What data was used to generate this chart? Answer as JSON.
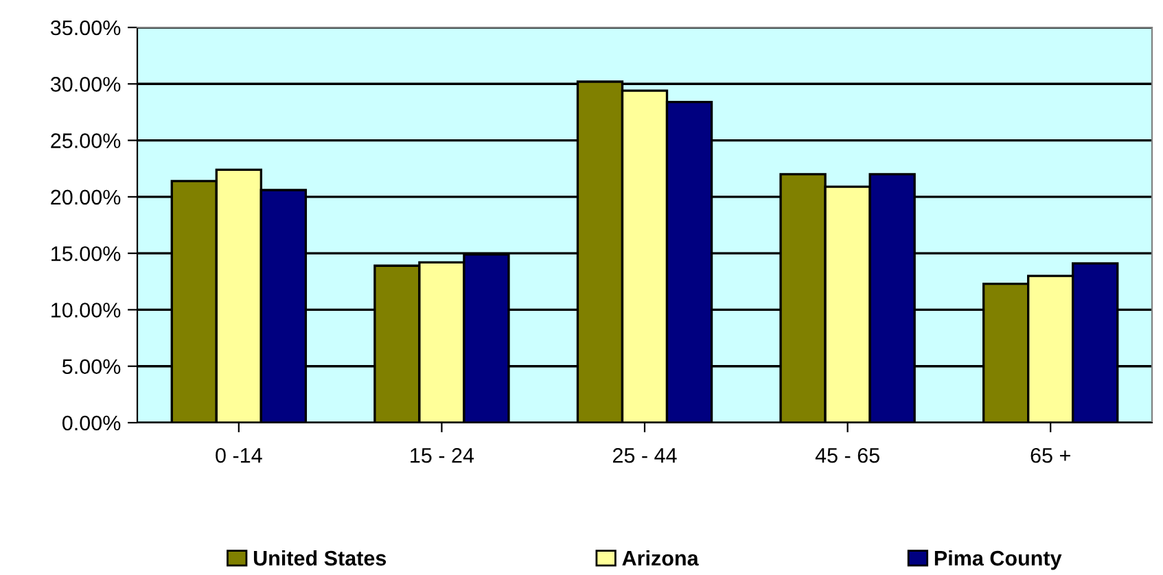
{
  "chart_data": {
    "type": "bar",
    "categories": [
      "0 -14",
      "15 - 24",
      "25 - 44",
      "45 - 65",
      "65 +"
    ],
    "series": [
      {
        "name": "United States",
        "color": "#808000",
        "values": [
          21.4,
          13.9,
          30.2,
          22.0,
          12.3
        ]
      },
      {
        "name": "Arizona",
        "color": "#ffff99",
        "values": [
          22.4,
          14.2,
          29.4,
          20.9,
          13.0
        ]
      },
      {
        "name": "Pima County",
        "color": "#000080",
        "values": [
          20.6,
          14.9,
          28.4,
          22.0,
          14.1
        ]
      }
    ],
    "ylim": [
      0,
      35
    ],
    "yticks": [
      {
        "value": 0,
        "label": "0.00%"
      },
      {
        "value": 5,
        "label": "5.00%"
      },
      {
        "value": 10,
        "label": "10.00%"
      },
      {
        "value": 15,
        "label": "15.00%"
      },
      {
        "value": 20,
        "label": "20.00%"
      },
      {
        "value": 25,
        "label": "25.00%"
      },
      {
        "value": 30,
        "label": "30.00%"
      },
      {
        "value": 35,
        "label": "35.00%"
      }
    ],
    "grid": "y",
    "legend": "bottom"
  }
}
